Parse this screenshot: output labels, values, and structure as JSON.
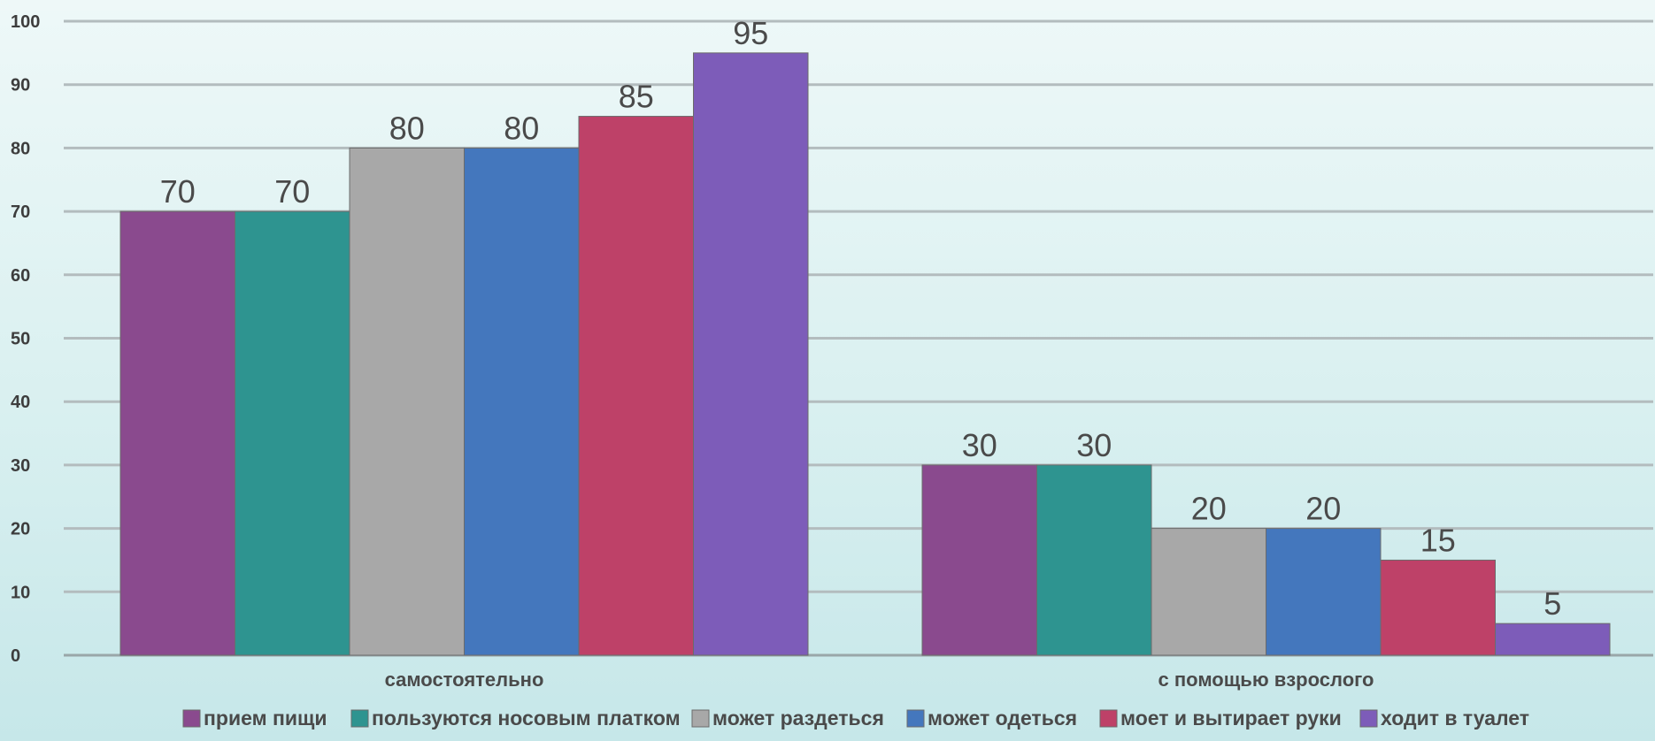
{
  "chart_data": {
    "type": "bar",
    "categories": [
      "самостоятельно",
      "с помощью взрослого"
    ],
    "series": [
      {
        "name": "прием пищи",
        "values": [
          70,
          30
        ],
        "color": "#8a4a8e"
      },
      {
        "name": "пользуются носовым платком",
        "values": [
          70,
          30
        ],
        "color": "#2e9490"
      },
      {
        "name": "может раздеться",
        "values": [
          80,
          20
        ],
        "color": "#a8a8a8"
      },
      {
        "name": "может одеться",
        "values": [
          80,
          20
        ],
        "color": "#4477bd"
      },
      {
        "name": "моет и вытирает руки",
        "values": [
          85,
          15
        ],
        "color": "#be4168"
      },
      {
        "name": "ходит в туалет",
        "values": [
          95,
          5
        ],
        "color": "#7d5cb9"
      }
    ],
    "yticks": [
      0,
      10,
      20,
      30,
      40,
      50,
      60,
      70,
      80,
      90,
      100
    ],
    "ylim": [
      0,
      100
    ],
    "grid": true,
    "legend": "bottom",
    "title": "",
    "xlabel": "",
    "ylabel": ""
  }
}
